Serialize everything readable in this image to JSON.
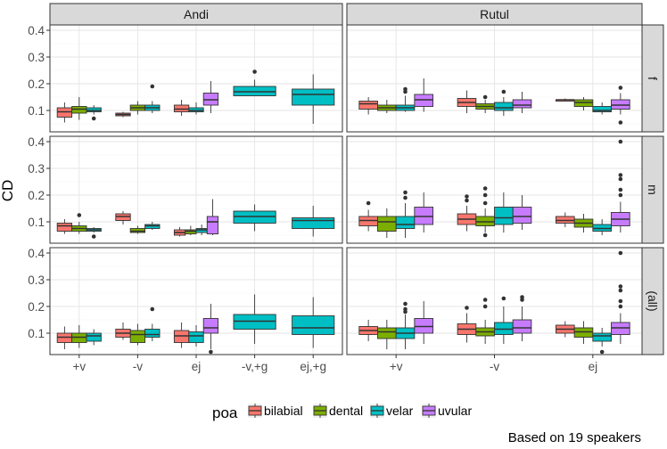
{
  "chart_data": {
    "type": "boxplot",
    "ylabel": "CD",
    "ylim": [
      0.02,
      0.42
    ],
    "yticks": [
      0.1,
      0.2,
      0.3,
      0.4
    ],
    "ytick_labels": [
      "0.1",
      "0.2",
      "0.3",
      "0.4"
    ],
    "columns": [
      "Andi",
      "Rutul"
    ],
    "rows": [
      "f",
      "m",
      "(all)"
    ],
    "categories": {
      "Andi": [
        "+v",
        "-v",
        "ej",
        "-v,+g",
        "ej,+g"
      ],
      "Rutul": [
        "+v",
        "-v",
        "ej"
      ]
    },
    "legend": {
      "title": "poa",
      "entries": [
        {
          "name": "bilabial",
          "color": "#F8766D"
        },
        {
          "name": "dental",
          "color": "#7CAE00"
        },
        {
          "name": "velar",
          "color": "#00BFC4"
        },
        {
          "name": "uvular",
          "color": "#C77CFF"
        }
      ]
    },
    "caption": "Based on 19 speakers",
    "boxes": [
      {
        "col": "Andi",
        "row": "f",
        "cat": "+v",
        "poa": "bilabial",
        "stats": [
          0.055,
          0.075,
          0.095,
          0.11,
          0.13
        ],
        "outliers": []
      },
      {
        "col": "Andi",
        "row": "f",
        "cat": "+v",
        "poa": "dental",
        "stats": [
          0.065,
          0.09,
          0.105,
          0.115,
          0.15
        ],
        "outliers": []
      },
      {
        "col": "Andi",
        "row": "f",
        "cat": "+v",
        "poa": "velar",
        "stats": [
          0.085,
          0.095,
          0.1,
          0.11,
          0.12
        ],
        "outliers": [
          0.07
        ]
      },
      {
        "col": "Andi",
        "row": "f",
        "cat": "-v",
        "poa": "bilabial",
        "stats": [
          0.075,
          0.08,
          0.085,
          0.09,
          0.095
        ],
        "outliers": []
      },
      {
        "col": "Andi",
        "row": "f",
        "cat": "-v",
        "poa": "dental",
        "stats": [
          0.085,
          0.1,
          0.11,
          0.12,
          0.135
        ],
        "outliers": []
      },
      {
        "col": "Andi",
        "row": "f",
        "cat": "-v",
        "poa": "velar",
        "stats": [
          0.09,
          0.1,
          0.11,
          0.12,
          0.135
        ],
        "outliers": [
          0.19
        ]
      },
      {
        "col": "Andi",
        "row": "f",
        "cat": "ej",
        "poa": "bilabial",
        "stats": [
          0.08,
          0.095,
          0.105,
          0.12,
          0.14
        ],
        "outliers": []
      },
      {
        "col": "Andi",
        "row": "f",
        "cat": "ej",
        "poa": "velar",
        "stats": [
          0.085,
          0.095,
          0.1,
          0.11,
          0.13
        ],
        "outliers": []
      },
      {
        "col": "Andi",
        "row": "f",
        "cat": "ej",
        "poa": "uvular",
        "stats": [
          0.09,
          0.12,
          0.14,
          0.165,
          0.21
        ],
        "outliers": []
      },
      {
        "col": "Andi",
        "row": "f",
        "cat": "-v,+g",
        "poa": "velar",
        "stats": [
          0.155,
          0.155,
          0.17,
          0.19,
          0.215
        ],
        "outliers": [
          0.245
        ]
      },
      {
        "col": "Andi",
        "row": "f",
        "cat": "ej,+g",
        "poa": "velar",
        "stats": [
          0.05,
          0.12,
          0.16,
          0.18,
          0.235
        ],
        "outliers": []
      },
      {
        "col": "Rutul",
        "row": "f",
        "cat": "+v",
        "poa": "bilabial",
        "stats": [
          0.085,
          0.105,
          0.125,
          0.135,
          0.15
        ],
        "outliers": []
      },
      {
        "col": "Rutul",
        "row": "f",
        "cat": "+v",
        "poa": "dental",
        "stats": [
          0.09,
          0.1,
          0.11,
          0.12,
          0.14
        ],
        "outliers": []
      },
      {
        "col": "Rutul",
        "row": "f",
        "cat": "+v",
        "poa": "velar",
        "stats": [
          0.095,
          0.1,
          0.11,
          0.12,
          0.155
        ],
        "outliers": [
          0.17,
          0.18
        ]
      },
      {
        "col": "Rutul",
        "row": "f",
        "cat": "+v",
        "poa": "uvular",
        "stats": [
          0.095,
          0.115,
          0.14,
          0.16,
          0.22
        ],
        "outliers": []
      },
      {
        "col": "Rutul",
        "row": "f",
        "cat": "-v",
        "poa": "bilabial",
        "stats": [
          0.09,
          0.115,
          0.13,
          0.145,
          0.175
        ],
        "outliers": []
      },
      {
        "col": "Rutul",
        "row": "f",
        "cat": "-v",
        "poa": "dental",
        "stats": [
          0.09,
          0.105,
          0.115,
          0.125,
          0.14
        ],
        "outliers": [
          0.15
        ]
      },
      {
        "col": "Rutul",
        "row": "f",
        "cat": "-v",
        "poa": "velar",
        "stats": [
          0.08,
          0.1,
          0.11,
          0.13,
          0.15
        ],
        "outliers": [
          0.17
        ]
      },
      {
        "col": "Rutul",
        "row": "f",
        "cat": "-v",
        "poa": "uvular",
        "stats": [
          0.09,
          0.11,
          0.12,
          0.14,
          0.17
        ],
        "outliers": []
      },
      {
        "col": "Rutul",
        "row": "f",
        "cat": "ej",
        "poa": "bilabial",
        "stats": [
          0.135,
          0.135,
          0.14,
          0.14,
          0.145
        ],
        "outliers": []
      },
      {
        "col": "Rutul",
        "row": "f",
        "cat": "ej",
        "poa": "dental",
        "stats": [
          0.1,
          0.115,
          0.13,
          0.14,
          0.15
        ],
        "outliers": []
      },
      {
        "col": "Rutul",
        "row": "f",
        "cat": "ej",
        "poa": "velar",
        "stats": [
          0.085,
          0.095,
          0.1,
          0.115,
          0.13
        ],
        "outliers": []
      },
      {
        "col": "Rutul",
        "row": "f",
        "cat": "ej",
        "poa": "uvular",
        "stats": [
          0.085,
          0.105,
          0.12,
          0.14,
          0.165
        ],
        "outliers": [
          0.185,
          0.055
        ]
      },
      {
        "col": "Andi",
        "row": "m",
        "cat": "+v",
        "poa": "bilabial",
        "stats": [
          0.055,
          0.065,
          0.085,
          0.095,
          0.11
        ],
        "outliers": []
      },
      {
        "col": "Andi",
        "row": "m",
        "cat": "+v",
        "poa": "dental",
        "stats": [
          0.055,
          0.065,
          0.075,
          0.085,
          0.1
        ],
        "outliers": [
          0.125
        ]
      },
      {
        "col": "Andi",
        "row": "m",
        "cat": "+v",
        "poa": "velar",
        "stats": [
          0.06,
          0.065,
          0.07,
          0.075,
          0.08
        ],
        "outliers": [
          0.045
        ]
      },
      {
        "col": "Andi",
        "row": "m",
        "cat": "-v",
        "poa": "bilabial",
        "stats": [
          0.09,
          0.105,
          0.12,
          0.13,
          0.14
        ],
        "outliers": []
      },
      {
        "col": "Andi",
        "row": "m",
        "cat": "-v",
        "poa": "dental",
        "stats": [
          0.055,
          0.06,
          0.065,
          0.075,
          0.085
        ],
        "outliers": []
      },
      {
        "col": "Andi",
        "row": "m",
        "cat": "-v",
        "poa": "velar",
        "stats": [
          0.07,
          0.075,
          0.085,
          0.09,
          0.1
        ],
        "outliers": []
      },
      {
        "col": "Andi",
        "row": "m",
        "cat": "ej",
        "poa": "bilabial",
        "stats": [
          0.045,
          0.05,
          0.06,
          0.07,
          0.08
        ],
        "outliers": []
      },
      {
        "col": "Andi",
        "row": "m",
        "cat": "ej",
        "poa": "dental",
        "stats": [
          0.05,
          0.055,
          0.065,
          0.07,
          0.085
        ],
        "outliers": []
      },
      {
        "col": "Andi",
        "row": "m",
        "cat": "ej",
        "poa": "velar",
        "stats": [
          0.05,
          0.06,
          0.07,
          0.075,
          0.09
        ],
        "outliers": []
      },
      {
        "col": "Andi",
        "row": "m",
        "cat": "ej",
        "poa": "uvular",
        "stats": [
          0.05,
          0.055,
          0.1,
          0.12,
          0.185
        ],
        "outliers": []
      },
      {
        "col": "Andi",
        "row": "m",
        "cat": "-v,+g",
        "poa": "velar",
        "stats": [
          0.065,
          0.095,
          0.12,
          0.14,
          0.165
        ],
        "outliers": []
      },
      {
        "col": "Andi",
        "row": "m",
        "cat": "ej,+g",
        "poa": "velar",
        "stats": [
          0.045,
          0.075,
          0.105,
          0.115,
          0.16
        ],
        "outliers": []
      },
      {
        "col": "Rutul",
        "row": "m",
        "cat": "+v",
        "poa": "bilabial",
        "stats": [
          0.065,
          0.085,
          0.105,
          0.12,
          0.145
        ],
        "outliers": [
          0.17
        ]
      },
      {
        "col": "Rutul",
        "row": "m",
        "cat": "+v",
        "poa": "dental",
        "stats": [
          0.04,
          0.065,
          0.1,
          0.12,
          0.15
        ],
        "outliers": []
      },
      {
        "col": "Rutul",
        "row": "m",
        "cat": "+v",
        "poa": "velar",
        "stats": [
          0.04,
          0.075,
          0.09,
          0.12,
          0.17
        ],
        "outliers": [
          0.19,
          0.21
        ]
      },
      {
        "col": "Rutul",
        "row": "m",
        "cat": "+v",
        "poa": "uvular",
        "stats": [
          0.06,
          0.09,
          0.12,
          0.155,
          0.21
        ],
        "outliers": []
      },
      {
        "col": "Rutul",
        "row": "m",
        "cat": "-v",
        "poa": "bilabial",
        "stats": [
          0.065,
          0.09,
          0.11,
          0.13,
          0.16
        ],
        "outliers": [
          0.18,
          0.195
        ]
      },
      {
        "col": "Rutul",
        "row": "m",
        "cat": "-v",
        "poa": "dental",
        "stats": [
          0.06,
          0.085,
          0.1,
          0.12,
          0.15
        ],
        "outliers": [
          0.05,
          0.17,
          0.2,
          0.225
        ]
      },
      {
        "col": "Rutul",
        "row": "m",
        "cat": "-v",
        "poa": "velar",
        "stats": [
          0.06,
          0.09,
          0.115,
          0.155,
          0.21
        ],
        "outliers": []
      },
      {
        "col": "Rutul",
        "row": "m",
        "cat": "-v",
        "poa": "uvular",
        "stats": [
          0.07,
          0.095,
          0.12,
          0.155,
          0.2
        ],
        "outliers": []
      },
      {
        "col": "Rutul",
        "row": "m",
        "cat": "ej",
        "poa": "bilabial",
        "stats": [
          0.08,
          0.095,
          0.105,
          0.12,
          0.135
        ],
        "outliers": []
      },
      {
        "col": "Rutul",
        "row": "m",
        "cat": "ej",
        "poa": "dental",
        "stats": [
          0.06,
          0.08,
          0.095,
          0.11,
          0.13
        ],
        "outliers": []
      },
      {
        "col": "Rutul",
        "row": "m",
        "cat": "ej",
        "poa": "velar",
        "stats": [
          0.05,
          0.065,
          0.075,
          0.09,
          0.11
        ],
        "outliers": []
      },
      {
        "col": "Rutul",
        "row": "m",
        "cat": "ej",
        "poa": "uvular",
        "stats": [
          0.06,
          0.085,
          0.11,
          0.135,
          0.175
        ],
        "outliers": [
          0.2,
          0.22,
          0.26,
          0.275,
          0.4
        ]
      },
      {
        "col": "Andi",
        "row": "(all)",
        "cat": "+v",
        "poa": "bilabial",
        "stats": [
          0.04,
          0.065,
          0.085,
          0.1,
          0.125
        ],
        "outliers": []
      },
      {
        "col": "Andi",
        "row": "(all)",
        "cat": "+v",
        "poa": "dental",
        "stats": [
          0.045,
          0.065,
          0.085,
          0.1,
          0.13
        ],
        "outliers": []
      },
      {
        "col": "Andi",
        "row": "(all)",
        "cat": "+v",
        "poa": "velar",
        "stats": [
          0.055,
          0.07,
          0.09,
          0.1,
          0.115
        ],
        "outliers": []
      },
      {
        "col": "Andi",
        "row": "(all)",
        "cat": "-v",
        "poa": "bilabial",
        "stats": [
          0.075,
          0.085,
          0.1,
          0.115,
          0.14
        ],
        "outliers": []
      },
      {
        "col": "Andi",
        "row": "(all)",
        "cat": "-v",
        "poa": "dental",
        "stats": [
          0.055,
          0.065,
          0.095,
          0.11,
          0.135
        ],
        "outliers": []
      },
      {
        "col": "Andi",
        "row": "(all)",
        "cat": "-v",
        "poa": "velar",
        "stats": [
          0.07,
          0.085,
          0.095,
          0.115,
          0.135
        ],
        "outliers": [
          0.19
        ]
      },
      {
        "col": "Andi",
        "row": "(all)",
        "cat": "ej",
        "poa": "bilabial",
        "stats": [
          0.045,
          0.065,
          0.09,
          0.11,
          0.14
        ],
        "outliers": []
      },
      {
        "col": "Andi",
        "row": "(all)",
        "cat": "ej",
        "poa": "velar",
        "stats": [
          0.05,
          0.065,
          0.09,
          0.105,
          0.13
        ],
        "outliers": []
      },
      {
        "col": "Andi",
        "row": "(all)",
        "cat": "ej",
        "poa": "uvular",
        "stats": [
          0.04,
          0.1,
          0.12,
          0.155,
          0.21
        ],
        "outliers": [
          0.03
        ]
      },
      {
        "col": "Andi",
        "row": "(all)",
        "cat": "-v,+g",
        "poa": "velar",
        "stats": [
          0.06,
          0.115,
          0.145,
          0.17,
          0.245
        ],
        "outliers": []
      },
      {
        "col": "Andi",
        "row": "(all)",
        "cat": "ej,+g",
        "poa": "velar",
        "stats": [
          0.045,
          0.095,
          0.12,
          0.165,
          0.235
        ],
        "outliers": []
      },
      {
        "col": "Rutul",
        "row": "(all)",
        "cat": "+v",
        "poa": "bilabial",
        "stats": [
          0.07,
          0.095,
          0.11,
          0.125,
          0.15
        ],
        "outliers": []
      },
      {
        "col": "Rutul",
        "row": "(all)",
        "cat": "+v",
        "poa": "dental",
        "stats": [
          0.04,
          0.08,
          0.105,
          0.12,
          0.15
        ],
        "outliers": []
      },
      {
        "col": "Rutul",
        "row": "(all)",
        "cat": "+v",
        "poa": "velar",
        "stats": [
          0.04,
          0.08,
          0.1,
          0.12,
          0.17
        ],
        "outliers": [
          0.18,
          0.19,
          0.21
        ]
      },
      {
        "col": "Rutul",
        "row": "(all)",
        "cat": "+v",
        "poa": "uvular",
        "stats": [
          0.06,
          0.1,
          0.125,
          0.155,
          0.22
        ],
        "outliers": []
      },
      {
        "col": "Rutul",
        "row": "(all)",
        "cat": "-v",
        "poa": "bilabial",
        "stats": [
          0.065,
          0.095,
          0.115,
          0.135,
          0.175
        ],
        "outliers": [
          0.195
        ]
      },
      {
        "col": "Rutul",
        "row": "(all)",
        "cat": "-v",
        "poa": "dental",
        "stats": [
          0.06,
          0.09,
          0.105,
          0.12,
          0.15
        ],
        "outliers": [
          0.2,
          0.225
        ]
      },
      {
        "col": "Rutul",
        "row": "(all)",
        "cat": "-v",
        "poa": "velar",
        "stats": [
          0.06,
          0.095,
          0.115,
          0.14,
          0.2
        ],
        "outliers": [
          0.23
        ]
      },
      {
        "col": "Rutul",
        "row": "(all)",
        "cat": "-v",
        "poa": "uvular",
        "stats": [
          0.07,
          0.1,
          0.12,
          0.15,
          0.2
        ],
        "outliers": [
          0.225,
          0.235
        ]
      },
      {
        "col": "Rutul",
        "row": "(all)",
        "cat": "ej",
        "poa": "bilabial",
        "stats": [
          0.085,
          0.1,
          0.115,
          0.13,
          0.145
        ],
        "outliers": []
      },
      {
        "col": "Rutul",
        "row": "(all)",
        "cat": "ej",
        "poa": "dental",
        "stats": [
          0.06,
          0.085,
          0.105,
          0.12,
          0.145
        ],
        "outliers": []
      },
      {
        "col": "Rutul",
        "row": "(all)",
        "cat": "ej",
        "poa": "velar",
        "stats": [
          0.05,
          0.07,
          0.09,
          0.1,
          0.12
        ],
        "outliers": [
          0.03
        ]
      },
      {
        "col": "Rutul",
        "row": "(all)",
        "cat": "ej",
        "poa": "uvular",
        "stats": [
          0.06,
          0.095,
          0.12,
          0.14,
          0.175
        ],
        "outliers": [
          0.2,
          0.22,
          0.26,
          0.275,
          0.4
        ]
      }
    ]
  }
}
